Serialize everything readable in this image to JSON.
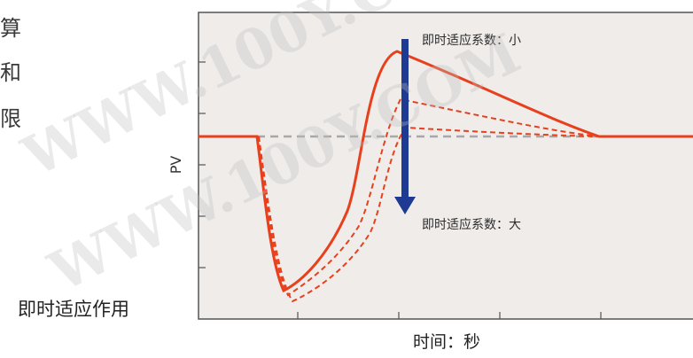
{
  "side_text": [
    "算",
    "和",
    "限"
  ],
  "left_caption": "即时适应作用",
  "axes": {
    "ylabel": "PV",
    "xlabel": "时间：秒"
  },
  "annotations": {
    "top": "即时适应系数：小",
    "bottom": "即时适应系数：大"
  },
  "watermarks": [
    "WWW.100Y.COM",
    "WWW.100Y.COM"
  ],
  "colors": {
    "response": "#e8401c",
    "arrow": "#1f3a93",
    "setpoint": "#a8a8a8",
    "plot_bg": "#efecea"
  }
}
